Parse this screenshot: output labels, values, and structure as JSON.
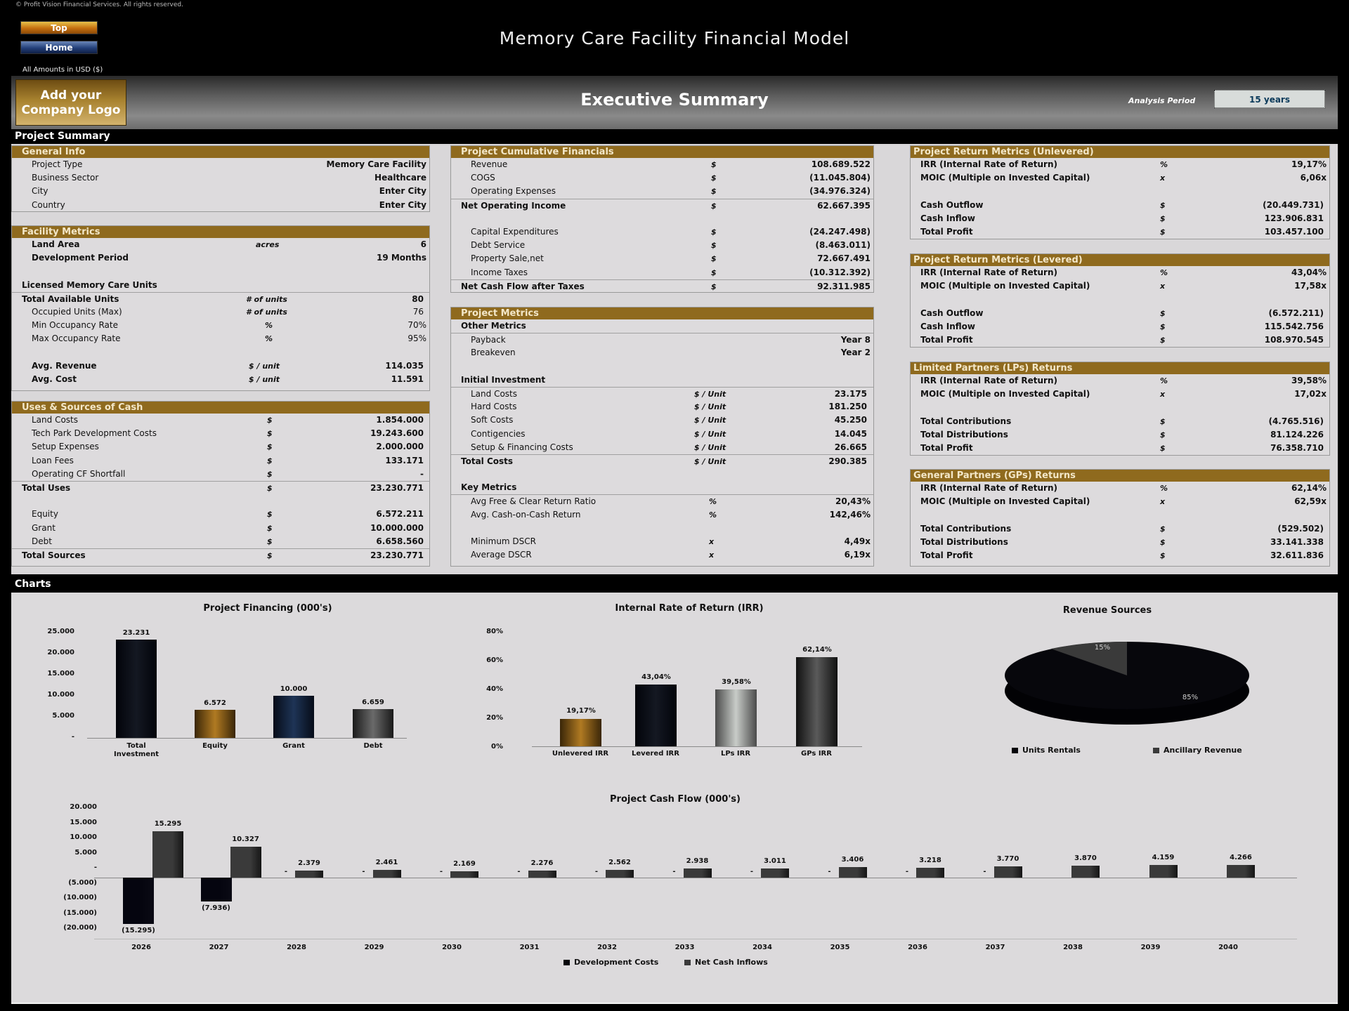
{
  "copyright": "© Profit Vision Financial Services. All rights reserved.",
  "nav": {
    "top_label": "Top",
    "home_label": "Home"
  },
  "amounts_note": "All Amounts in  USD ($)",
  "app_title": "Memory Care Facility Financial Model",
  "banner": {
    "logo_line1": "Add your",
    "logo_line2": "Company Logo",
    "title": "Executive Summary",
    "analysis_period_label": "Analysis Period",
    "analysis_period_value": "15 years"
  },
  "sections": {
    "project_summary": "Project Summary",
    "charts": "Charts"
  },
  "general_info": {
    "title": "General Info",
    "rows": [
      {
        "label": "Project Type",
        "value": "Memory Care Facility"
      },
      {
        "label": "Business Sector",
        "value": "Healthcare"
      },
      {
        "label": "City",
        "value": "Enter City"
      },
      {
        "label": "Country",
        "value": "Enter City"
      }
    ]
  },
  "facility_metrics": {
    "title": "Facility Metrics",
    "land_area": {
      "label": "Land Area",
      "unit": "acres",
      "value": "6"
    },
    "dev_period": {
      "label": "Development Period",
      "value": "19 Months"
    },
    "units_heading": "Licensed Memory Care Units",
    "total_units": {
      "label": "Total Available Units",
      "unit": "# of units",
      "value": "80"
    },
    "occupied": {
      "label": "Occupied Units (Max)",
      "unit": "# of units",
      "value": "76"
    },
    "min_occ": {
      "label": "Min Occupancy Rate",
      "unit": "%",
      "value": "70%"
    },
    "max_occ": {
      "label": "Max Occupancy Rate",
      "unit": "%",
      "value": "95%"
    },
    "avg_revenue": {
      "label": "Avg. Revenue",
      "unit": "$ / unit",
      "value": "114.035"
    },
    "avg_cost": {
      "label": "Avg. Cost",
      "unit": "$ / unit",
      "value": "11.591"
    }
  },
  "uses_sources": {
    "title": "Uses & Sources of Cash",
    "uses": [
      {
        "label": "Land Costs",
        "unit": "$",
        "value": "1.854.000"
      },
      {
        "label": "Tech Park Development Costs",
        "unit": "$",
        "value": "19.243.600"
      },
      {
        "label": "Setup Expenses",
        "unit": "$",
        "value": "2.000.000"
      },
      {
        "label": "Loan Fees",
        "unit": "$",
        "value": "133.171"
      },
      {
        "label": "Operating CF Shortfall",
        "unit": "$",
        "value": "-"
      }
    ],
    "total_uses": {
      "label": "Total Uses",
      "unit": "$",
      "value": "23.230.771"
    },
    "sources": [
      {
        "label": "Equity",
        "unit": "$",
        "value": "6.572.211"
      },
      {
        "label": "Grant",
        "unit": "$",
        "value": "10.000.000"
      },
      {
        "label": "Debt",
        "unit": "$",
        "value": "6.658.560"
      }
    ],
    "total_sources": {
      "label": "Total Sources",
      "unit": "$",
      "value": "23.230.771"
    }
  },
  "cumulative": {
    "title": "Project Cumulative Financials",
    "revenue": {
      "label": "Revenue",
      "unit": "$",
      "value": "108.689.522"
    },
    "cogs": {
      "label": "COGS",
      "unit": "$",
      "value": "(11.045.804)"
    },
    "opex": {
      "label": "Operating Expenses",
      "unit": "$",
      "value": "(34.976.324)"
    },
    "noi": {
      "label": "Net Operating Income",
      "unit": "$",
      "value": "62.667.395"
    },
    "capex": {
      "label": "Capital Expenditures",
      "unit": "$",
      "value": "(24.247.498)"
    },
    "debt_service": {
      "label": "Debt Service",
      "unit": "$",
      "value": "(8.463.011)"
    },
    "property_sale": {
      "label": "Property Sale,net",
      "unit": "$",
      "value": "72.667.491"
    },
    "income_taxes": {
      "label": "Income Taxes",
      "unit": "$",
      "value": "(10.312.392)"
    },
    "net_cf": {
      "label": "Net Cash Flow after Taxes",
      "unit": "$",
      "value": "92.311.985"
    }
  },
  "project_metrics": {
    "title": "Project Metrics",
    "other_heading": "Other Metrics",
    "payback": {
      "label": "Payback",
      "value": "Year 8"
    },
    "breakeven": {
      "label": "Breakeven",
      "value": "Year 2"
    },
    "initial_heading": "Initial Investment",
    "initial": [
      {
        "label": "Land Costs",
        "unit": "$ / Unit",
        "value": "23.175"
      },
      {
        "label": "Hard Costs",
        "unit": "$ / Unit",
        "value": "181.250"
      },
      {
        "label": "Soft Costs",
        "unit": "$ / Unit",
        "value": "45.250"
      },
      {
        "label": "Contigencies",
        "unit": "$ / Unit",
        "value": "14.045"
      },
      {
        "label": "Setup & Financing Costs",
        "unit": "$ / Unit",
        "value": "26.665"
      }
    ],
    "total_costs": {
      "label": "Total Costs",
      "unit": "$ / Unit",
      "value": "290.385"
    },
    "key_heading": "Key Metrics",
    "fc_ratio": {
      "label": "Avg Free & Clear Return Ratio",
      "unit": "%",
      "value": "20,43%"
    },
    "coc": {
      "label": "Avg. Cash-on-Cash Return",
      "unit": "%",
      "value": "142,46%"
    },
    "min_dscr": {
      "label": "Minimum DSCR",
      "unit": "x",
      "value": "4,49x"
    },
    "avg_dscr": {
      "label": "Average DSCR",
      "unit": "x",
      "value": "6,19x"
    }
  },
  "unlevered": {
    "title": "Project Return Metrics (Unlevered)",
    "irr": {
      "label": "IRR (Internal Rate of Return)",
      "unit": "%",
      "value": "19,17%"
    },
    "moic": {
      "label": "MOIC (Multiple on Invested Capital)",
      "unit": "x",
      "value": "6,06x"
    },
    "out": {
      "label": "Cash Outflow",
      "unit": "$",
      "value": "(20.449.731)"
    },
    "in": {
      "label": "Cash Inflow",
      "unit": "$",
      "value": "123.906.831"
    },
    "profit": {
      "label": "Total Profit",
      "unit": "$",
      "value": "103.457.100"
    }
  },
  "levered": {
    "title": "Project Return Metrics (Levered)",
    "irr": {
      "label": "IRR (Internal Rate of Return)",
      "unit": "%",
      "value": "43,04%"
    },
    "moic": {
      "label": "MOIC (Multiple on Invested Capital)",
      "unit": "x",
      "value": "17,58x"
    },
    "out": {
      "label": "Cash Outflow",
      "unit": "$",
      "value": "(6.572.211)"
    },
    "in": {
      "label": "Cash Inflow",
      "unit": "$",
      "value": "115.542.756"
    },
    "profit": {
      "label": "Total Profit",
      "unit": "$",
      "value": "108.970.545"
    }
  },
  "lps": {
    "title": "Limited Partners (LPs) Returns",
    "irr": {
      "label": "IRR (Internal Rate of Return)",
      "unit": "%",
      "value": "39,58%"
    },
    "moic": {
      "label": "MOIC (Multiple on Invested Capital)",
      "unit": "x",
      "value": "17,02x"
    },
    "contrib": {
      "label": "Total Contributions",
      "unit": "$",
      "value": "(4.765.516)"
    },
    "dist": {
      "label": "Total Distributions",
      "unit": "$",
      "value": "81.124.226"
    },
    "profit": {
      "label": "Total Profit",
      "unit": "$",
      "value": "76.358.710"
    }
  },
  "gps": {
    "title": "General Partners (GPs) Returns",
    "irr": {
      "label": "IRR (Internal Rate of Return)",
      "unit": "%",
      "value": "62,14%"
    },
    "moic": {
      "label": "MOIC (Multiple on Invested Capital)",
      "unit": "x",
      "value": "62,59x"
    },
    "contrib": {
      "label": "Total Contributions",
      "unit": "$",
      "value": "(529.502)"
    },
    "dist": {
      "label": "Total Distributions",
      "unit": "$",
      "value": "33.141.338"
    },
    "profit": {
      "label": "Total Profit",
      "unit": "$",
      "value": "32.611.836"
    }
  },
  "colors": {
    "section_header": "#8f6a1e",
    "panel_bg": "#dddbdd",
    "page_bg": "#000000"
  },
  "chart_data": [
    {
      "type": "bar",
      "title": "Project Financing (000's)",
      "categories": [
        "Total Investment",
        "Equity",
        "Grant",
        "Debt"
      ],
      "values": [
        23231,
        6572,
        10000,
        6659
      ],
      "value_labels": [
        "23.231",
        "6.572",
        "10.000",
        "6.659"
      ],
      "yticks": [
        "25.000",
        "20.000",
        "15.000",
        "10.000",
        "5.000",
        "-"
      ],
      "ylim": [
        0,
        25000
      ],
      "colors": [
        "#05080f",
        "#8a5f14",
        "#10203a",
        "#3a3a3a"
      ]
    },
    {
      "type": "bar",
      "title": "Internal Rate of Return (IRR)",
      "categories": [
        "Unlevered IRR",
        "Levered IRR",
        "LPs IRR",
        "GPs IRR"
      ],
      "values": [
        19.17,
        43.04,
        39.58,
        62.14
      ],
      "value_labels": [
        "19,17%",
        "43,04%",
        "39,58%",
        "62,14%"
      ],
      "yticks": [
        "80%",
        "60%",
        "40%",
        "20%",
        "0%"
      ],
      "ylim": [
        0,
        80
      ],
      "colors": [
        "#8a5f14",
        "#05080f",
        "#9a9a9a",
        "#2f2f2f"
      ]
    },
    {
      "type": "pie",
      "title": "Revenue Sources",
      "categories": [
        "Units Rentals",
        "Ancillary Revenue"
      ],
      "values": [
        85,
        15
      ],
      "value_labels": [
        "85%",
        "15%"
      ],
      "colors": [
        "#05050a",
        "#3a3a3a"
      ],
      "legend_position": "bottom"
    },
    {
      "type": "bar",
      "title": "Project Cash Flow (000's)",
      "categories": [
        "2026",
        "2027",
        "2028",
        "2029",
        "2030",
        "2031",
        "2032",
        "2033",
        "2034",
        "2035",
        "2036",
        "2037",
        "2038",
        "2039",
        "2040"
      ],
      "series": [
        {
          "name": "Development Costs",
          "values": [
            -15295,
            -7936,
            0,
            0,
            0,
            0,
            0,
            0,
            0,
            0,
            0,
            0,
            0,
            0,
            0
          ],
          "labels": [
            "(15.295)",
            "(7.936)",
            "-",
            "-",
            "-",
            "-",
            "-",
            "-",
            "-",
            "-",
            "-",
            "-",
            "",
            "",
            ""
          ]
        },
        {
          "name": "Net Cash Inflows",
          "values": [
            15295,
            10327,
            2379,
            2461,
            2169,
            2276,
            2562,
            2938,
            3011,
            3406,
            3218,
            3770,
            3870,
            4159,
            4266
          ],
          "labels": [
            "15.295",
            "10.327",
            "2.379",
            "2.461",
            "2.169",
            "2.276",
            "2.562",
            "2.938",
            "3.011",
            "3.406",
            "3.218",
            "3.770",
            "3.870",
            "4.159",
            "4.266"
          ]
        }
      ],
      "yticks": [
        "20.000",
        "15.000",
        "10.000",
        "5.000",
        "-",
        "(5.000)",
        "(10.000)",
        "(15.000)",
        "(20.000)"
      ],
      "ylim": [
        -20000,
        20000
      ],
      "legend_position": "bottom"
    }
  ]
}
